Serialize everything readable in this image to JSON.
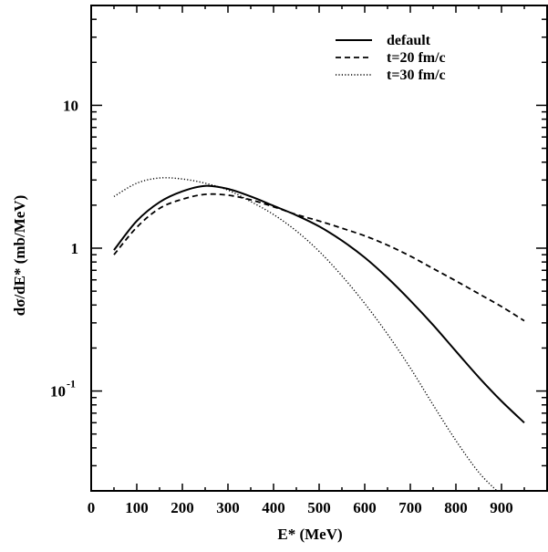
{
  "chart_data": {
    "type": "line",
    "title": "",
    "xlabel": "E* (MeV)",
    "ylabel": "dσ/dE* (mb/MeV)",
    "xlim": [
      0,
      1000
    ],
    "ylim": [
      0.02,
      50
    ],
    "y_scale": "log",
    "grid": false,
    "legend_position": "top-right",
    "x_ticks": [
      {
        "value": 0,
        "label": "0"
      },
      {
        "value": 100,
        "label": "100"
      },
      {
        "value": 200,
        "label": "200"
      },
      {
        "value": 300,
        "label": "300"
      },
      {
        "value": 400,
        "label": "400"
      },
      {
        "value": 500,
        "label": "500"
      },
      {
        "value": 600,
        "label": "600"
      },
      {
        "value": 700,
        "label": "700"
      },
      {
        "value": 800,
        "label": "800"
      },
      {
        "value": 900,
        "label": "900"
      }
    ],
    "y_ticks": [
      {
        "value": 0.1,
        "base": "10",
        "exponent": "-1"
      },
      {
        "value": 1,
        "base": "1",
        "exponent": ""
      },
      {
        "value": 10,
        "base": "10",
        "exponent": ""
      }
    ],
    "series": [
      {
        "name": "default",
        "style": "solid",
        "x": [
          50,
          100,
          150,
          200,
          250,
          300,
          350,
          400,
          450,
          500,
          550,
          600,
          650,
          700,
          750,
          800,
          850,
          900,
          950
        ],
        "y": [
          0.97,
          1.55,
          2.1,
          2.5,
          2.73,
          2.6,
          2.3,
          1.98,
          1.7,
          1.42,
          1.13,
          0.86,
          0.62,
          0.43,
          0.29,
          0.19,
          0.125,
          0.085,
          0.06
        ]
      },
      {
        "name": "t=20 fm/c",
        "style": "dashed",
        "x": [
          50,
          100,
          150,
          200,
          250,
          300,
          350,
          400,
          450,
          500,
          550,
          600,
          650,
          700,
          750,
          800,
          850,
          900,
          950
        ],
        "y": [
          0.9,
          1.4,
          1.9,
          2.2,
          2.38,
          2.35,
          2.18,
          1.95,
          1.72,
          1.55,
          1.38,
          1.22,
          1.05,
          0.88,
          0.72,
          0.59,
          0.48,
          0.39,
          0.31
        ]
      },
      {
        "name": "t=30 fm/c",
        "style": "dotted",
        "x": [
          50,
          100,
          150,
          200,
          250,
          300,
          350,
          400,
          450,
          500,
          550,
          600,
          650,
          700,
          750,
          800,
          850,
          890
        ],
        "y": [
          2.3,
          2.85,
          3.1,
          3.05,
          2.85,
          2.55,
          2.12,
          1.72,
          1.32,
          0.95,
          0.64,
          0.41,
          0.25,
          0.145,
          0.08,
          0.045,
          0.027,
          0.02
        ]
      }
    ]
  }
}
